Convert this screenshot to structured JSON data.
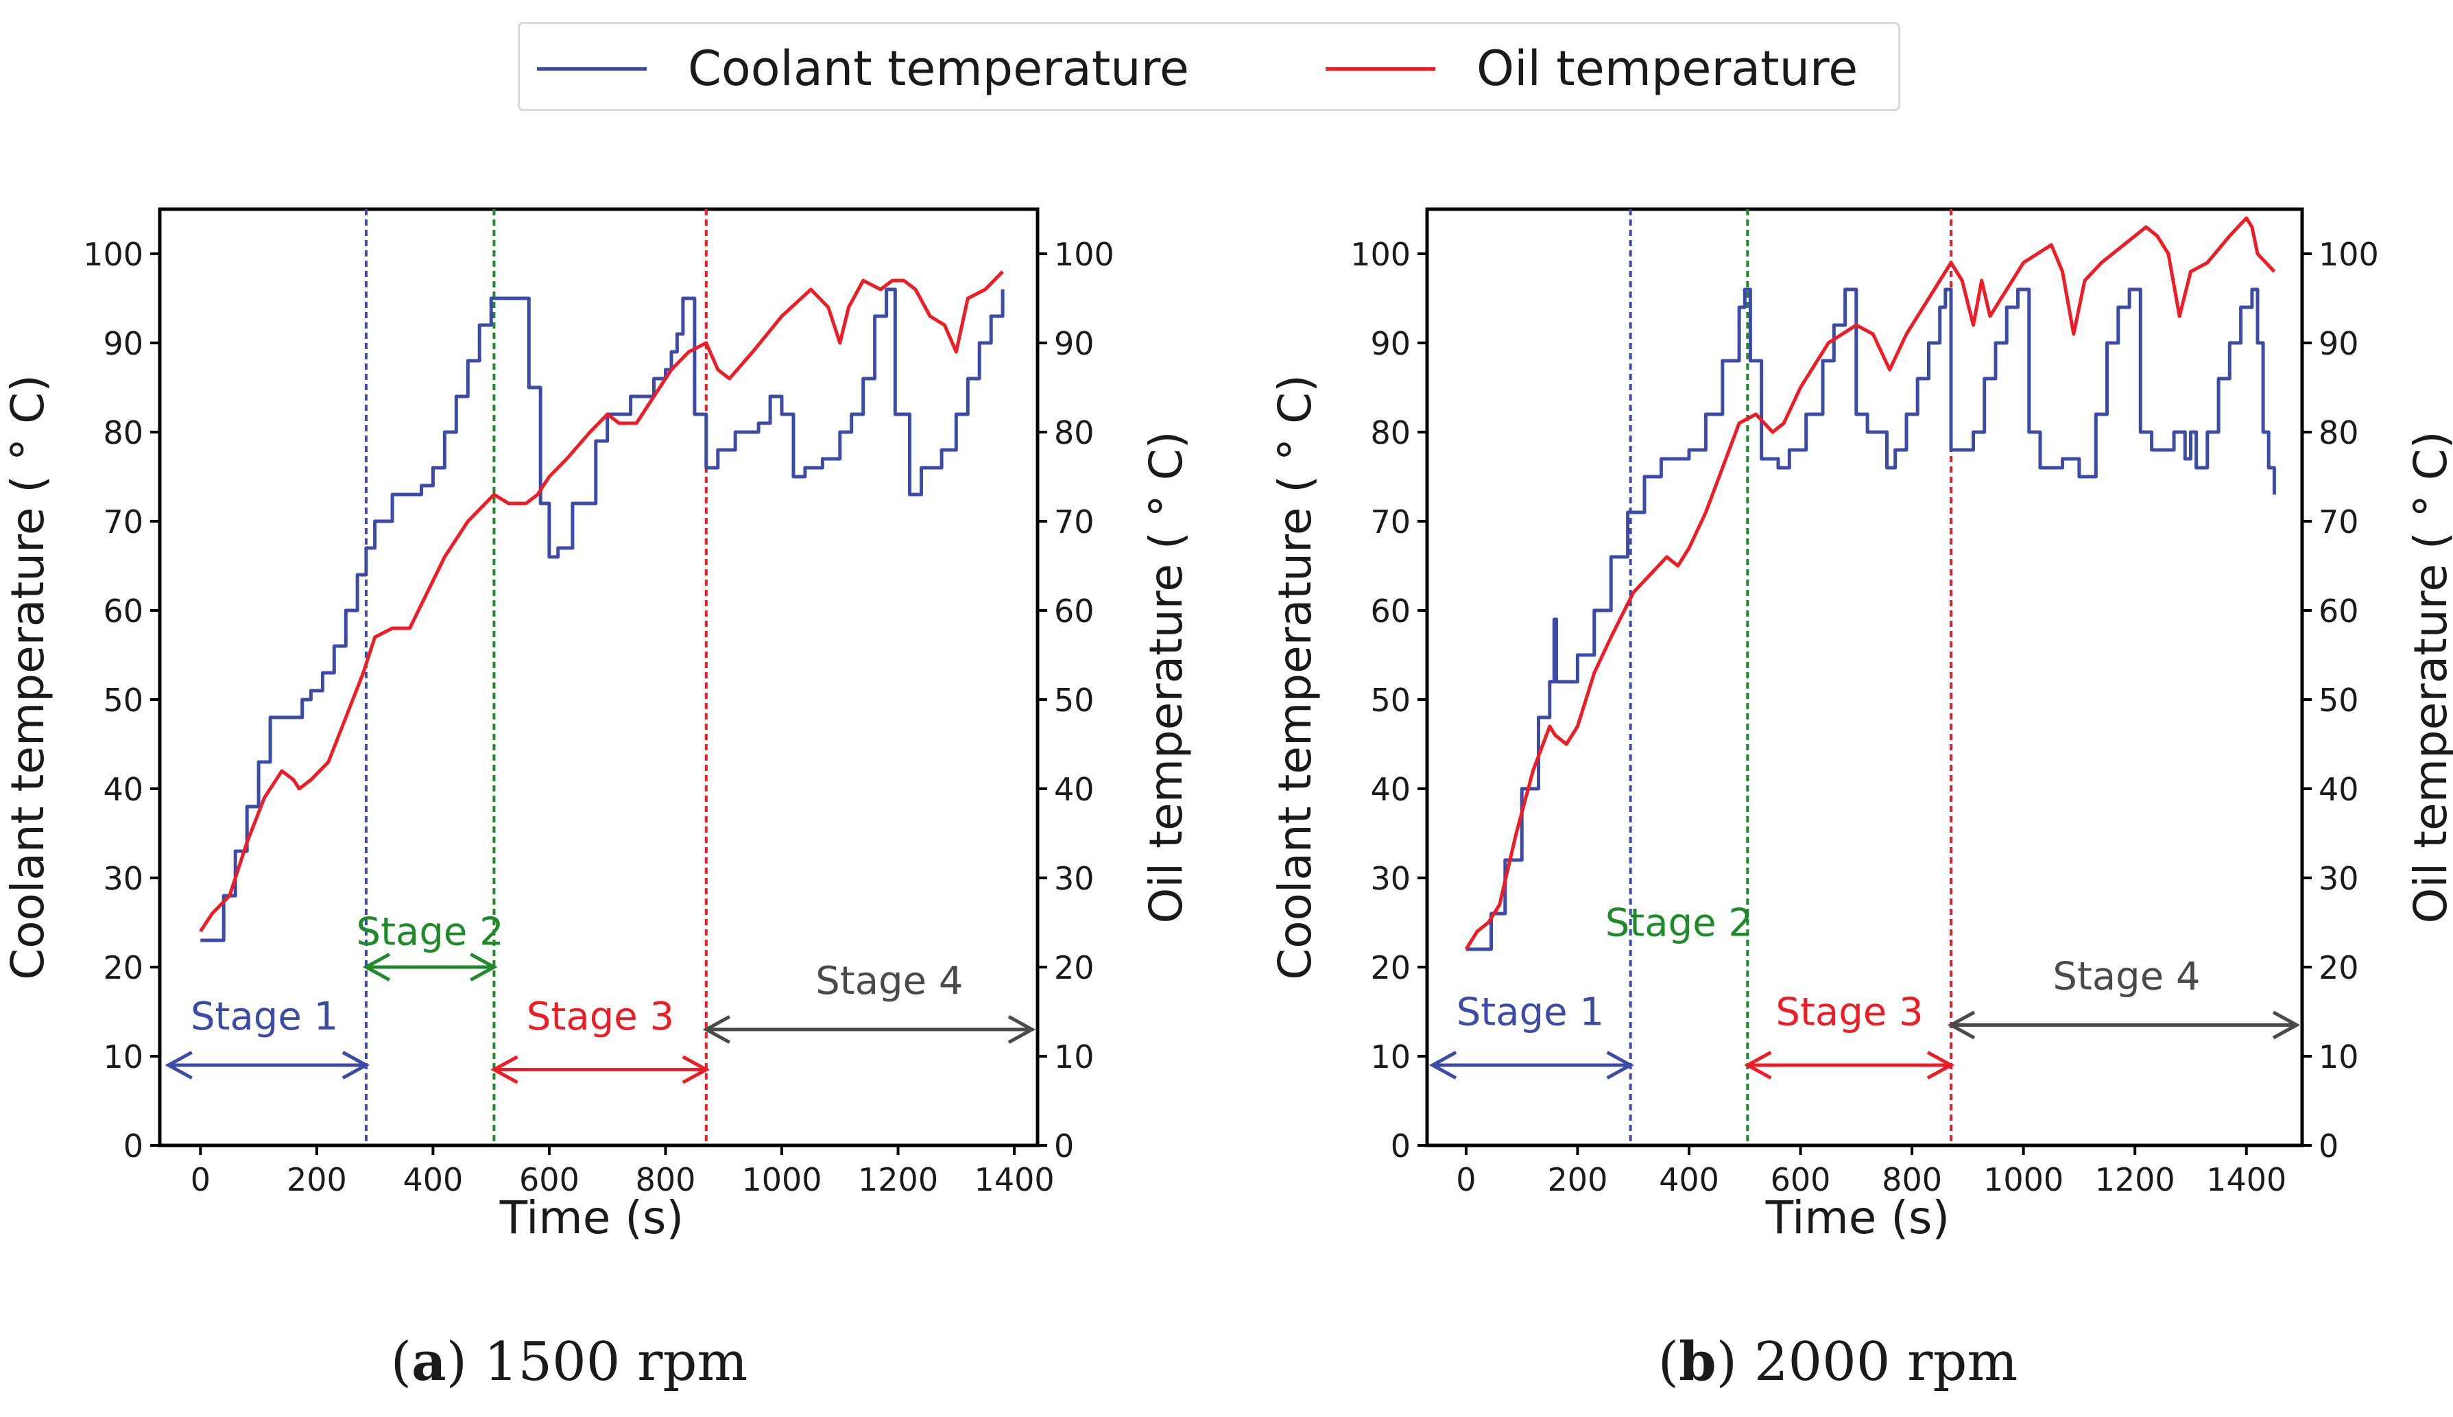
{
  "colors": {
    "coolant": "#3b4ba6",
    "oil": "#ee1c24",
    "stage1": "#3b4ba6",
    "stage2": "#1f8a2a",
    "stage3": "#ee1c24",
    "stage4": "#4a4a4a"
  },
  "legend": {
    "coolant_label": "Coolant temperature",
    "oil_label": "Oil temperature"
  },
  "chart_data": [
    {
      "type": "line",
      "id": "a",
      "caption_letter": "a",
      "caption_text": "1500 rpm",
      "xlabel": "Time (s)",
      "ylabel_left": "Coolant temperature ( ° C)",
      "ylabel_right": "Oil temperature ( ° C)",
      "xlim": [
        -70,
        1440
      ],
      "ylim": [
        0,
        105
      ],
      "xticks": [
        "0",
        "200",
        "400",
        "600",
        "800",
        "1000",
        "1200",
        "1400"
      ],
      "yticks": [
        "0",
        "10",
        "20",
        "30",
        "40",
        "50",
        "60",
        "70",
        "80",
        "90",
        "100"
      ],
      "stage_bounds": [
        285,
        505,
        870
      ],
      "stages": [
        {
          "label": "Stage 1",
          "color_key": "stage1",
          "x_from": -55,
          "x_to": 285,
          "arrow_y": 9,
          "text_x": 110,
          "text_y": 13
        },
        {
          "label": "Stage 2",
          "color_key": "stage2",
          "x_from": 285,
          "x_to": 505,
          "arrow_y": 20,
          "text_x": 395,
          "text_y": 22.5
        },
        {
          "label": "Stage 3",
          "color_key": "stage3",
          "x_from": 505,
          "x_to": 870,
          "arrow_y": 8.5,
          "text_x": 688,
          "text_y": 13
        },
        {
          "label": "Stage 4",
          "color_key": "stage4",
          "x_from": 870,
          "x_to": 1440,
          "arrow_y": 13,
          "text_x": 1185,
          "text_y": 17
        }
      ],
      "series": [
        {
          "name": "Coolant temperature",
          "color_key": "coolant",
          "step": true,
          "x": [
            0,
            25,
            40,
            60,
            80,
            100,
            120,
            140,
            160,
            175,
            190,
            210,
            230,
            250,
            270,
            285,
            300,
            330,
            360,
            380,
            400,
            420,
            440,
            460,
            480,
            500,
            530,
            545,
            565,
            585,
            600,
            615,
            640,
            680,
            700,
            740,
            780,
            800,
            810,
            820,
            830,
            840,
            850,
            870,
            890,
            920,
            960,
            980,
            1000,
            1020,
            1040,
            1070,
            1100,
            1120,
            1140,
            1160,
            1180,
            1195,
            1220,
            1240,
            1260,
            1275,
            1300,
            1320,
            1340,
            1360,
            1380
          ],
          "y": [
            23,
            23,
            28,
            33,
            38,
            43,
            48,
            48,
            48,
            50,
            51,
            53,
            56,
            60,
            64,
            67,
            70,
            73,
            73,
            74,
            76,
            80,
            84,
            88,
            92,
            95,
            95,
            95,
            85,
            72,
            66,
            67,
            72,
            79,
            82,
            84,
            86,
            87,
            89,
            91,
            95,
            95,
            82,
            76,
            78,
            80,
            81,
            84,
            82,
            75,
            76,
            77,
            80,
            82,
            86,
            93,
            96,
            82,
            73,
            76,
            76,
            78,
            82,
            86,
            90,
            93,
            96
          ]
        },
        {
          "name": "Oil temperature",
          "color_key": "oil",
          "step": false,
          "x": [
            0,
            20,
            50,
            80,
            110,
            140,
            160,
            170,
            190,
            220,
            250,
            280,
            300,
            330,
            360,
            390,
            420,
            460,
            490,
            505,
            530,
            560,
            580,
            600,
            630,
            670,
            700,
            720,
            750,
            780,
            810,
            840,
            870,
            890,
            910,
            950,
            1000,
            1050,
            1080,
            1100,
            1115,
            1140,
            1170,
            1190,
            1210,
            1230,
            1255,
            1280,
            1300,
            1320,
            1350,
            1380
          ],
          "y": [
            24,
            26,
            28,
            34,
            39,
            42,
            41,
            40,
            41,
            43,
            48,
            53,
            57,
            58,
            58,
            62,
            66,
            70,
            72,
            73,
            72,
            72,
            73,
            75,
            77,
            80,
            82,
            81,
            81,
            84,
            87,
            89,
            90,
            87,
            86,
            89,
            93,
            96,
            94,
            90,
            94,
            97,
            96,
            97,
            97,
            96,
            93,
            92,
            89,
            95,
            96,
            98
          ]
        }
      ]
    },
    {
      "type": "line",
      "id": "b",
      "caption_letter": "b",
      "caption_text": "2000 rpm",
      "xlabel": "Time (s)",
      "ylabel_left": "Coolant temperature ( ° C)",
      "ylabel_right": "Oil temperature ( ° C)",
      "xlim": [
        -70,
        1500
      ],
      "ylim": [
        0,
        105
      ],
      "xticks": [
        "0",
        "200",
        "400",
        "600",
        "800",
        "1000",
        "1200",
        "1400"
      ],
      "yticks": [
        "0",
        "10",
        "20",
        "30",
        "40",
        "50",
        "60",
        "70",
        "80",
        "90",
        "100"
      ],
      "stage_bounds": [
        295,
        505,
        870
      ],
      "stages": [
        {
          "label": "Stage 1",
          "color_key": "stage1",
          "x_from": -65,
          "x_to": 295,
          "arrow_y": 9,
          "text_x": 115,
          "text_y": 13.5
        },
        {
          "label": "Stage 2",
          "color_key": "stage2",
          "x_from": 0,
          "x_to": 0,
          "arrow_y": 0,
          "text_x": 382,
          "text_y": 23.5
        },
        {
          "label": "Stage 3",
          "color_key": "stage3",
          "x_from": 505,
          "x_to": 870,
          "arrow_y": 9,
          "text_x": 688,
          "text_y": 13.5
        },
        {
          "label": "Stage 4",
          "color_key": "stage4",
          "x_from": 870,
          "x_to": 1500,
          "arrow_y": 13.5,
          "text_x": 1185,
          "text_y": 17.5
        }
      ],
      "series": [
        {
          "name": "Coolant temperature",
          "color_key": "coolant",
          "step": true,
          "x": [
            0,
            30,
            45,
            70,
            100,
            130,
            150,
            158,
            162,
            175,
            200,
            230,
            260,
            290,
            320,
            350,
            380,
            400,
            430,
            460,
            490,
            500,
            510,
            530,
            560,
            580,
            610,
            640,
            660,
            680,
            700,
            720,
            740,
            755,
            770,
            790,
            810,
            830,
            850,
            860,
            870,
            880,
            890,
            910,
            930,
            950,
            970,
            990,
            1010,
            1030,
            1050,
            1070,
            1100,
            1130,
            1150,
            1170,
            1190,
            1210,
            1230,
            1250,
            1270,
            1290,
            1300,
            1310,
            1330,
            1350,
            1370,
            1390,
            1410,
            1420,
            1430,
            1440,
            1450
          ],
          "y": [
            22,
            22,
            26,
            32,
            40,
            48,
            52,
            59,
            52,
            52,
            55,
            60,
            66,
            71,
            75,
            77,
            77,
            78,
            82,
            88,
            94,
            96,
            88,
            77,
            76,
            78,
            82,
            88,
            92,
            96,
            82,
            80,
            80,
            76,
            78,
            82,
            86,
            90,
            94,
            96,
            78,
            78,
            78,
            80,
            86,
            90,
            94,
            96,
            80,
            76,
            76,
            77,
            75,
            82,
            90,
            94,
            96,
            80,
            78,
            78,
            80,
            77,
            80,
            76,
            80,
            86,
            90,
            94,
            96,
            90,
            80,
            76,
            73
          ]
        },
        {
          "name": "Oil temperature",
          "color_key": "oil",
          "step": false,
          "x": [
            0,
            20,
            40,
            60,
            90,
            120,
            150,
            160,
            180,
            200,
            230,
            260,
            300,
            330,
            360,
            380,
            400,
            430,
            460,
            490,
            520,
            550,
            570,
            600,
            650,
            700,
            730,
            760,
            790,
            830,
            870,
            890,
            910,
            925,
            940,
            960,
            1000,
            1050,
            1070,
            1090,
            1110,
            1140,
            1180,
            1220,
            1240,
            1260,
            1280,
            1300,
            1330,
            1370,
            1400,
            1410,
            1420,
            1435,
            1450
          ],
          "y": [
            22,
            24,
            25,
            27,
            35,
            42,
            47,
            46,
            45,
            47,
            53,
            57,
            62,
            64,
            66,
            65,
            67,
            71,
            76,
            81,
            82,
            80,
            81,
            85,
            90,
            92,
            91,
            87,
            91,
            95,
            99,
            97,
            92,
            97,
            93,
            95,
            99,
            101,
            98,
            91,
            97,
            99,
            101,
            103,
            102,
            100,
            93,
            98,
            99,
            102,
            104,
            103,
            100,
            99,
            98
          ]
        }
      ]
    }
  ]
}
